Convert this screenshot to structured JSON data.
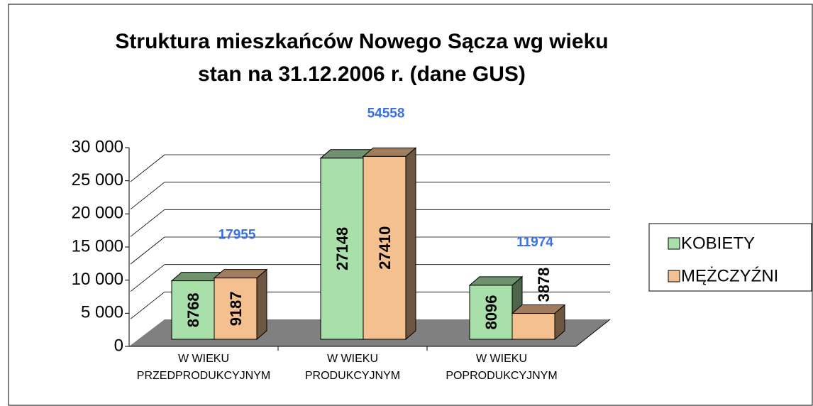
{
  "chart_data": {
    "type": "bar3d",
    "title": [
      "Struktura mieszkańców Nowego Sącza wg wieku",
      "stan na 31.12.2006 r. (dane GUS)"
    ],
    "categories": [
      [
        "W WIEKU",
        "PRZEDPRODUKCYJNYM"
      ],
      [
        "W WIEKU",
        "PRODUKCYJNYM"
      ],
      [
        "W WIEKU",
        "POPRODUKCYJNYM"
      ]
    ],
    "series": [
      {
        "name": "KOBIETY",
        "color": "#a9dfa9",
        "values": [
          8768,
          27148,
          8096
        ]
      },
      {
        "name": "MĘŻCZYŹNI",
        "color": "#f4c08f",
        "values": [
          9187,
          27410,
          3878
        ]
      }
    ],
    "totals": [
      17955,
      54558,
      11974
    ],
    "ylim": [
      0,
      30000
    ],
    "yticks": [
      0,
      {
        "value": 5000,
        "label": "5 000"
      },
      {
        "value": 10000,
        "label": "10 000"
      },
      {
        "value": 15000,
        "label": "15 000"
      },
      {
        "value": 20000,
        "label": "20 000"
      },
      {
        "value": 25000,
        "label": "25 000"
      },
      {
        "value": 30000,
        "label": "30 000"
      }
    ],
    "grid": true,
    "legend": "right"
  }
}
